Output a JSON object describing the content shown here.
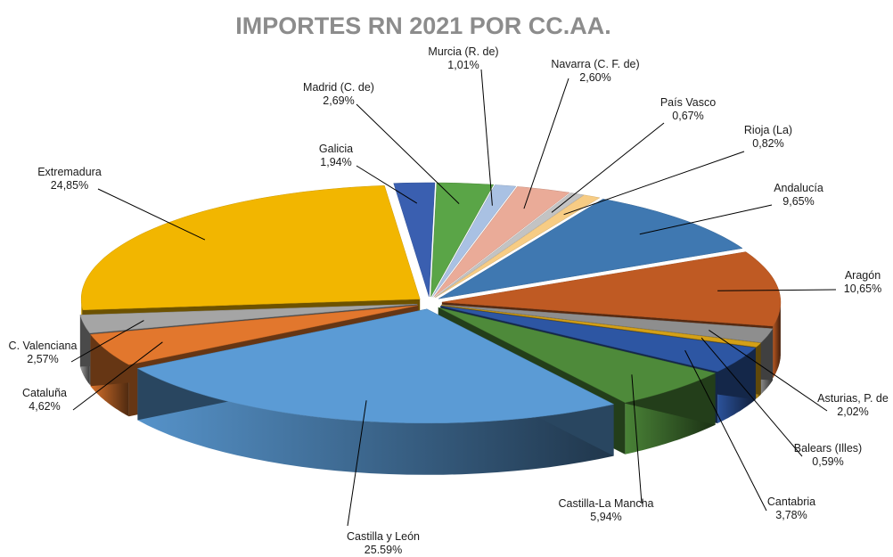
{
  "chart_data": {
    "type": "pie",
    "title": "IMPORTES RN 2021 POR CC.AA.",
    "slices": [
      {
        "name": "Galicia",
        "label": "1,94%",
        "value": 1.94,
        "color": "#3a5fb0"
      },
      {
        "name": "Madrid (C. de)",
        "label": "2,69%",
        "value": 2.69,
        "color": "#5aa547"
      },
      {
        "name": "Murcia (R. de)",
        "label": "1,01%",
        "value": 1.01,
        "color": "#a9c1e3"
      },
      {
        "name": "Navarra (C. F. de)",
        "label": "2,60%",
        "value": 2.6,
        "color": "#eaab98"
      },
      {
        "name": "País Vasco",
        "label": "0,67%",
        "value": 0.67,
        "color": "#c3c3c3"
      },
      {
        "name": "Rioja (La)",
        "label": "0,82%",
        "value": 0.82,
        "color": "#f7cc84"
      },
      {
        "name": "Andalucía",
        "label": "9,65%",
        "value": 9.65,
        "color": "#3f78b1"
      },
      {
        "name": "Aragón",
        "label": "10,65%",
        "value": 10.65,
        "color": "#bf5a23"
      },
      {
        "name": "Asturias, P. de",
        "label": "2,02%",
        "value": 2.02,
        "color": "#8e8e8e"
      },
      {
        "name": "Balears (Illes)",
        "label": "0,59%",
        "value": 0.59,
        "color": "#d4a017"
      },
      {
        "name": "Cantabria",
        "label": "3,78%",
        "value": 3.78,
        "color": "#2d56a3"
      },
      {
        "name": "Castilla-La Mancha",
        "label": "5,94%",
        "value": 5.94,
        "color": "#4e8a3a"
      },
      {
        "name": "Castilla y León",
        "label": "25.59%",
        "value": 25.59,
        "color": "#5b9bd5"
      },
      {
        "name": "Cataluña",
        "label": "4,62%",
        "value": 4.62,
        "color": "#e2772d"
      },
      {
        "name": "C. Valenciana",
        "label": "2,57%",
        "value": 2.57,
        "color": "#a5a5a5"
      },
      {
        "name": "Extremadura",
        "label": "24,85%",
        "value": 24.85,
        "color": "#f2b600"
      }
    ],
    "legend": "none",
    "style": "3d-exploded"
  }
}
